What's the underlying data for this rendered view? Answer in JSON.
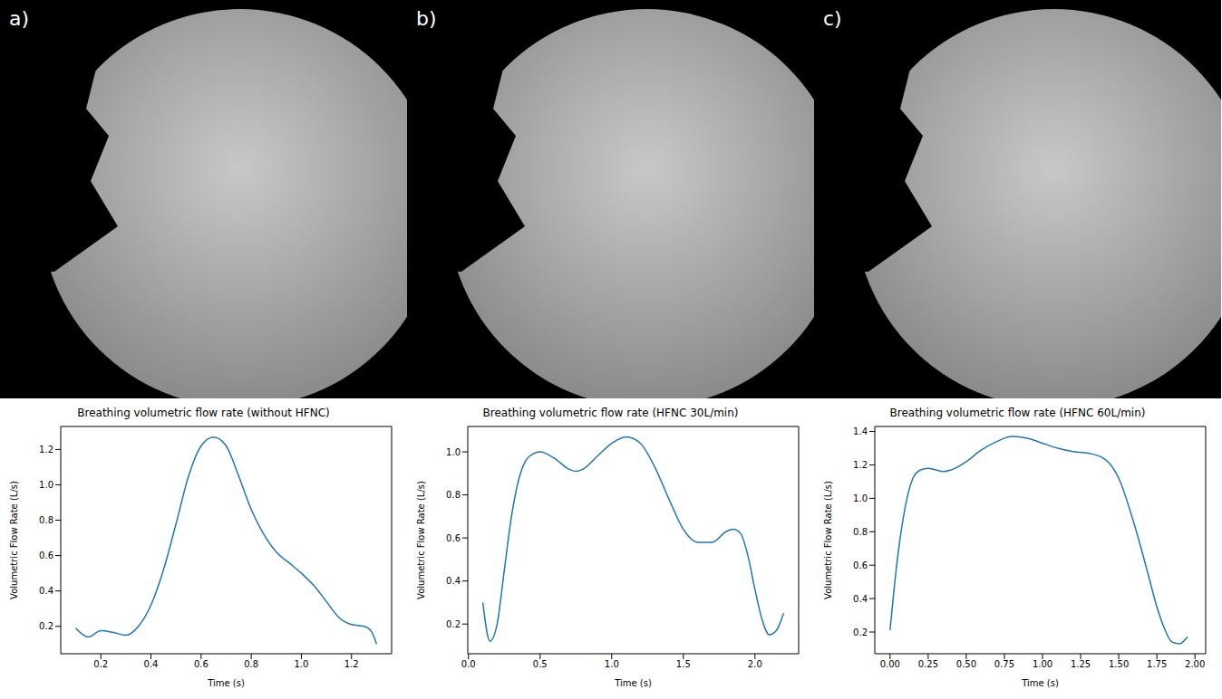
{
  "images": [
    {
      "label": "a)"
    },
    {
      "label": "b)"
    },
    {
      "label": "c)"
    }
  ],
  "chart_data": [
    {
      "type": "line",
      "title": "Breathing volumetric flow rate (without HFNC)",
      "x_label": "Time (s)",
      "y_label": "Volumetric Flow Rate (L/s)",
      "x": [
        0.1,
        0.15,
        0.2,
        0.25,
        0.3,
        0.35,
        0.4,
        0.45,
        0.5,
        0.55,
        0.6,
        0.65,
        0.7,
        0.75,
        0.8,
        0.85,
        0.9,
        0.95,
        1.0,
        1.05,
        1.1,
        1.15,
        1.2,
        1.25,
        1.28,
        1.3
      ],
      "values": [
        0.19,
        0.14,
        0.175,
        0.165,
        0.15,
        0.2,
        0.32,
        0.52,
        0.78,
        1.05,
        1.22,
        1.27,
        1.22,
        1.05,
        0.86,
        0.72,
        0.62,
        0.56,
        0.5,
        0.43,
        0.34,
        0.25,
        0.21,
        0.2,
        0.17,
        0.1
      ],
      "color": "#1f77b4",
      "xlim": [
        0.04,
        1.36
      ],
      "xticks": [
        0.2,
        0.4,
        0.6,
        0.8,
        {
          "value": 1,
          "label": "1.0"
        },
        1.2
      ],
      "ylim": [
        0.045,
        1.33
      ],
      "yticks": [
        0.2,
        0.4,
        0.6,
        0.8,
        {
          "value": 1,
          "label": "1.0"
        },
        1.2
      ],
      "grid": false
    },
    {
      "type": "line",
      "title": "Breathing volumetric flow rate (HFNC 30L/min)",
      "x_label": "Time (s)",
      "y_label": "Volumetric Flow Rate (L/s)",
      "x": [
        0.1,
        0.15,
        0.2,
        0.25,
        0.3,
        0.35,
        0.4,
        0.45,
        0.5,
        0.6,
        0.7,
        0.75,
        0.8,
        0.9,
        1.0,
        1.1,
        1.2,
        1.3,
        1.4,
        1.5,
        1.6,
        1.7,
        1.8,
        1.85,
        1.9,
        1.95,
        2.0,
        2.05,
        2.1,
        2.15,
        2.2
      ],
      "values": [
        0.3,
        0.12,
        0.2,
        0.45,
        0.7,
        0.87,
        0.96,
        0.99,
        1.0,
        0.97,
        0.92,
        0.91,
        0.92,
        0.98,
        1.04,
        1.07,
        1.04,
        0.93,
        0.78,
        0.64,
        0.58,
        0.58,
        0.63,
        0.64,
        0.62,
        0.52,
        0.36,
        0.22,
        0.15,
        0.17,
        0.25
      ],
      "color": "#1f77b4",
      "xlim": [
        -0.005,
        2.305
      ],
      "xticks": [
        {
          "value": 0,
          "label": "0.0"
        },
        0.5,
        {
          "value": 1,
          "label": "1.0"
        },
        1.5,
        {
          "value": 2,
          "label": "2.0"
        }
      ],
      "ylim": [
        0.062,
        1.118
      ],
      "yticks": [
        0.2,
        0.4,
        0.6,
        0.8,
        {
          "value": 1,
          "label": "1.0"
        }
      ],
      "grid": false
    },
    {
      "type": "line",
      "title": "Breathing volumetric flow rate (HFNC 60L/min)",
      "x_label": "Time (s)",
      "y_label": "Volumetric Flow Rate (L/s)",
      "x": [
        0,
        0.05,
        0.1,
        0.15,
        0.2,
        0.25,
        0.3,
        0.35,
        0.4,
        0.5,
        0.6,
        0.7,
        0.8,
        0.9,
        1.0,
        1.1,
        1.2,
        1.3,
        1.4,
        1.5,
        1.6,
        1.7,
        1.75,
        1.8,
        1.85,
        1.9,
        1.95
      ],
      "values": [
        0.21,
        0.65,
        0.95,
        1.12,
        1.17,
        1.18,
        1.17,
        1.16,
        1.17,
        1.22,
        1.29,
        1.34,
        1.37,
        1.36,
        1.33,
        1.3,
        1.28,
        1.27,
        1.24,
        1.12,
        0.85,
        0.52,
        0.35,
        0.22,
        0.14,
        0.13,
        0.17
      ],
      "color": "#1f77b4",
      "xlim": [
        -0.1,
        2.07
      ],
      "xticks": [
        {
          "value": 0,
          "label": "0.00"
        },
        0.25,
        {
          "value": 0.5,
          "label": "0.50"
        },
        0.75,
        {
          "value": 1,
          "label": "1.00"
        },
        1.25,
        {
          "value": 1.5,
          "label": "1.50"
        },
        1.75,
        {
          "value": 2,
          "label": "2.00"
        }
      ],
      "ylim": [
        0.07,
        1.43
      ],
      "yticks": [
        0.2,
        0.4,
        0.6,
        0.8,
        {
          "value": 1,
          "label": "1.0"
        },
        1.2,
        1.4
      ],
      "grid": false
    }
  ]
}
